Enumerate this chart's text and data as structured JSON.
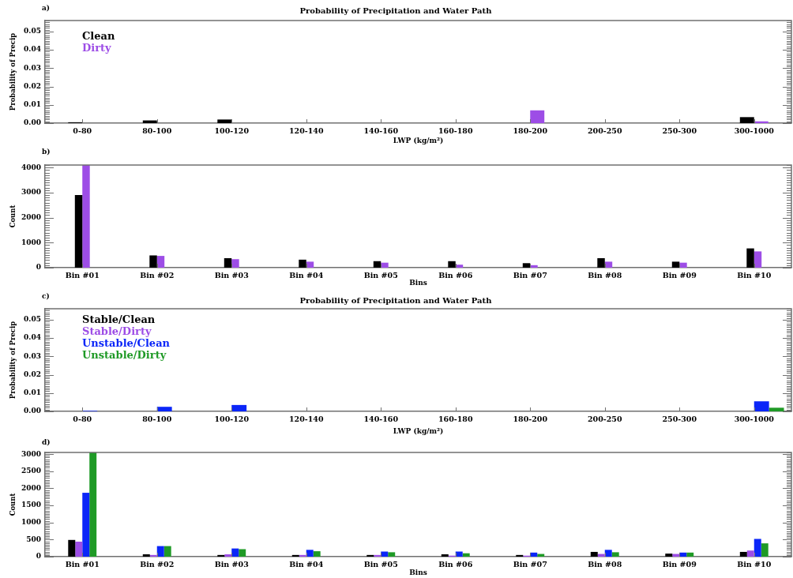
{
  "chart_data": [
    {
      "type": "bar",
      "title": "Probability of Precipitation and Water Path",
      "annotations": [
        "a)"
      ],
      "xlabel": "LWP (kg/m²)",
      "ylabel": "Probability of Precip",
      "categories": [
        "0-80",
        "80-100",
        "100-120",
        "120-140",
        "140-160",
        "160-180",
        "180-200",
        "200-250",
        "250-300",
        "300-1000"
      ],
      "series": [
        {
          "name": "Clean",
          "color": "#000000",
          "values": [
            0.0005,
            0.0015,
            0.002,
            0,
            0,
            0,
            0,
            0,
            0,
            0.0033
          ]
        },
        {
          "name": "Dirty",
          "color": "#9d4de6",
          "values": [
            0,
            0,
            0,
            0,
            0,
            0,
            0.007,
            0,
            0,
            0.001
          ]
        }
      ],
      "ylim": [
        0,
        0.056
      ],
      "yticks": [
        {
          "value": 0,
          "label": "0.00"
        },
        {
          "value": 0.001,
          "label": null
        },
        {
          "value": 0.002,
          "label": null
        },
        {
          "value": 0.003,
          "label": null
        },
        {
          "value": 0.004,
          "label": null
        },
        {
          "value": 0.005,
          "label": null
        },
        {
          "value": 0.006,
          "label": null
        },
        {
          "value": 0.007,
          "label": null
        },
        {
          "value": 0.008,
          "label": null
        },
        {
          "value": 0.009,
          "label": null
        },
        {
          "value": 0.01,
          "label": "0.01"
        },
        {
          "value": 0.011,
          "label": null
        },
        {
          "value": 0.012,
          "label": null
        },
        {
          "value": 0.013,
          "label": null
        },
        {
          "value": 0.014,
          "label": null
        },
        {
          "value": 0.015,
          "label": null
        },
        {
          "value": 0.016,
          "label": null
        },
        {
          "value": 0.017,
          "label": null
        },
        {
          "value": 0.018,
          "label": null
        },
        {
          "value": 0.019,
          "label": null
        },
        {
          "value": 0.02,
          "label": "0.02"
        },
        {
          "value": 0.021,
          "label": null
        },
        {
          "value": 0.022,
          "label": null
        },
        {
          "value": 0.023,
          "label": null
        },
        {
          "value": 0.024,
          "label": null
        },
        {
          "value": 0.025,
          "label": null
        },
        {
          "value": 0.026,
          "label": null
        },
        {
          "value": 0.027,
          "label": null
        },
        {
          "value": 0.028,
          "label": null
        },
        {
          "value": 0.029,
          "label": null
        },
        {
          "value": 0.03,
          "label": "0.03"
        },
        {
          "value": 0.031,
          "label": null
        },
        {
          "value": 0.032,
          "label": null
        },
        {
          "value": 0.033,
          "label": null
        },
        {
          "value": 0.034,
          "label": null
        },
        {
          "value": 0.035,
          "label": null
        },
        {
          "value": 0.036,
          "label": null
        },
        {
          "value": 0.037,
          "label": null
        },
        {
          "value": 0.038,
          "label": null
        },
        {
          "value": 0.039,
          "label": null
        },
        {
          "value": 0.04,
          "label": "0.04"
        },
        {
          "value": 0.041,
          "label": null
        },
        {
          "value": 0.042,
          "label": null
        },
        {
          "value": 0.043,
          "label": null
        },
        {
          "value": 0.044,
          "label": null
        },
        {
          "value": 0.045,
          "label": null
        },
        {
          "value": 0.046,
          "label": null
        },
        {
          "value": 0.047,
          "label": null
        },
        {
          "value": 0.048,
          "label": null
        },
        {
          "value": 0.049,
          "label": null
        },
        {
          "value": 0.05,
          "label": "0.05"
        },
        {
          "value": 0.051,
          "label": null
        },
        {
          "value": 0.052,
          "label": null
        },
        {
          "value": 0.053,
          "label": null
        },
        {
          "value": 0.054,
          "label": null
        },
        {
          "value": 0.055,
          "label": null
        },
        {
          "value": 0.056,
          "label": null
        }
      ],
      "legend": "top left"
    },
    {
      "type": "bar",
      "annotations": [
        "b)"
      ],
      "xlabel": "Bins",
      "ylabel": "Count",
      "categories": [
        "Bin #01",
        "Bin #02",
        "Bin #03",
        "Bin #04",
        "Bin #05",
        "Bin #06",
        "Bin #07",
        "Bin #08",
        "Bin #09",
        "Bin #10"
      ],
      "series": [
        {
          "color": "#000000",
          "values": [
            2900,
            490,
            380,
            320,
            260,
            260,
            180,
            380,
            240,
            770
          ]
        },
        {
          "color": "#9d4de6",
          "values": [
            4100,
            470,
            340,
            240,
            200,
            120,
            100,
            240,
            200,
            650
          ]
        }
      ],
      "ylim": [
        0,
        4100
      ],
      "yticks": [
        0,
        {
          "value": 100,
          "label": null
        },
        {
          "value": 200,
          "label": null
        },
        {
          "value": 300,
          "label": null
        },
        {
          "value": 400,
          "label": null
        },
        {
          "value": 500,
          "label": null
        },
        {
          "value": 600,
          "label": null
        },
        {
          "value": 700,
          "label": null
        },
        {
          "value": 800,
          "label": null
        },
        {
          "value": 900,
          "label": null
        },
        1000,
        {
          "value": 1100,
          "label": null
        },
        {
          "value": 1200,
          "label": null
        },
        {
          "value": 1300,
          "label": null
        },
        {
          "value": 1400,
          "label": null
        },
        {
          "value": 1500,
          "label": null
        },
        {
          "value": 1600,
          "label": null
        },
        {
          "value": 1700,
          "label": null
        },
        {
          "value": 1800,
          "label": null
        },
        {
          "value": 1900,
          "label": null
        },
        2000,
        {
          "value": 2100,
          "label": null
        },
        {
          "value": 2200,
          "label": null
        },
        {
          "value": 2300,
          "label": null
        },
        {
          "value": 2400,
          "label": null
        },
        {
          "value": 2500,
          "label": null
        },
        {
          "value": 2600,
          "label": null
        },
        {
          "value": 2700,
          "label": null
        },
        {
          "value": 2800,
          "label": null
        },
        {
          "value": 2900,
          "label": null
        },
        3000,
        {
          "value": 3100,
          "label": null
        },
        {
          "value": 3200,
          "label": null
        },
        {
          "value": 3300,
          "label": null
        },
        {
          "value": 3400,
          "label": null
        },
        {
          "value": 3500,
          "label": null
        },
        {
          "value": 3600,
          "label": null
        },
        {
          "value": 3700,
          "label": null
        },
        {
          "value": 3800,
          "label": null
        },
        {
          "value": 3900,
          "label": null
        },
        4000,
        {
          "value": 4100,
          "label": null
        }
      ]
    },
    {
      "type": "bar",
      "title": "Probability of Precipitation and Water Path",
      "annotations": [
        "c)"
      ],
      "xlabel": "LWP (kg/m²)",
      "ylabel": "Probability of Precip",
      "categories": [
        "0-80",
        "80-100",
        "100-120",
        "120-140",
        "140-160",
        "160-180",
        "180-200",
        "200-250",
        "250-300",
        "300-1000"
      ],
      "series": [
        {
          "name": "Stable/Clean",
          "color": "#000000",
          "values": [
            0,
            0,
            0,
            0,
            0,
            0,
            0,
            0,
            0,
            0
          ]
        },
        {
          "name": "Stable/Dirty",
          "color": "#9d4de6",
          "values": [
            0,
            0,
            0,
            0,
            0,
            0,
            0,
            0,
            0,
            0
          ]
        },
        {
          "name": "Unstable/Clean",
          "color": "#0b26f8",
          "values": [
            0.0003,
            0.0025,
            0.0035,
            0,
            0,
            0,
            0,
            0,
            0,
            0.0055
          ]
        },
        {
          "name": "Unstable/Dirty",
          "color": "#1f9a26",
          "values": [
            0,
            0,
            0,
            0,
            0,
            0,
            0,
            0,
            0,
            0.002
          ]
        }
      ],
      "ylim": [
        0,
        0.056
      ],
      "yticks": [
        {
          "value": 0,
          "label": "0.00"
        },
        {
          "value": 0.001,
          "label": null
        },
        {
          "value": 0.002,
          "label": null
        },
        {
          "value": 0.003,
          "label": null
        },
        {
          "value": 0.004,
          "label": null
        },
        {
          "value": 0.005,
          "label": null
        },
        {
          "value": 0.006,
          "label": null
        },
        {
          "value": 0.007,
          "label": null
        },
        {
          "value": 0.008,
          "label": null
        },
        {
          "value": 0.009,
          "label": null
        },
        {
          "value": 0.01,
          "label": "0.01"
        },
        {
          "value": 0.011,
          "label": null
        },
        {
          "value": 0.012,
          "label": null
        },
        {
          "value": 0.013,
          "label": null
        },
        {
          "value": 0.014,
          "label": null
        },
        {
          "value": 0.015,
          "label": null
        },
        {
          "value": 0.016,
          "label": null
        },
        {
          "value": 0.017,
          "label": null
        },
        {
          "value": 0.018,
          "label": null
        },
        {
          "value": 0.019,
          "label": null
        },
        {
          "value": 0.02,
          "label": "0.02"
        },
        {
          "value": 0.021,
          "label": null
        },
        {
          "value": 0.022,
          "label": null
        },
        {
          "value": 0.023,
          "label": null
        },
        {
          "value": 0.024,
          "label": null
        },
        {
          "value": 0.025,
          "label": null
        },
        {
          "value": 0.026,
          "label": null
        },
        {
          "value": 0.027,
          "label": null
        },
        {
          "value": 0.028,
          "label": null
        },
        {
          "value": 0.029,
          "label": null
        },
        {
          "value": 0.03,
          "label": "0.03"
        },
        {
          "value": 0.031,
          "label": null
        },
        {
          "value": 0.032,
          "label": null
        },
        {
          "value": 0.033,
          "label": null
        },
        {
          "value": 0.034,
          "label": null
        },
        {
          "value": 0.035,
          "label": null
        },
        {
          "value": 0.036,
          "label": null
        },
        {
          "value": 0.037,
          "label": null
        },
        {
          "value": 0.038,
          "label": null
        },
        {
          "value": 0.039,
          "label": null
        },
        {
          "value": 0.04,
          "label": "0.04"
        },
        {
          "value": 0.041,
          "label": null
        },
        {
          "value": 0.042,
          "label": null
        },
        {
          "value": 0.043,
          "label": null
        },
        {
          "value": 0.044,
          "label": null
        },
        {
          "value": 0.045,
          "label": null
        },
        {
          "value": 0.046,
          "label": null
        },
        {
          "value": 0.047,
          "label": null
        },
        {
          "value": 0.048,
          "label": null
        },
        {
          "value": 0.049,
          "label": null
        },
        {
          "value": 0.05,
          "label": "0.05"
        },
        {
          "value": 0.051,
          "label": null
        },
        {
          "value": 0.052,
          "label": null
        },
        {
          "value": 0.053,
          "label": null
        },
        {
          "value": 0.054,
          "label": null
        },
        {
          "value": 0.055,
          "label": null
        },
        {
          "value": 0.056,
          "label": null
        }
      ],
      "legend": "top left"
    },
    {
      "type": "bar",
      "annotations": [
        "d)"
      ],
      "xlabel": "Bins",
      "ylabel": "Count",
      "categories": [
        "Bin #01",
        "Bin #02",
        "Bin #03",
        "Bin #04",
        "Bin #05",
        "Bin #06",
        "Bin #07",
        "Bin #08",
        "Bin #09",
        "Bin #10"
      ],
      "series": [
        {
          "color": "#000000",
          "values": [
            490,
            70,
            50,
            50,
            50,
            70,
            50,
            140,
            90,
            140
          ]
        },
        {
          "color": "#9d4de6",
          "values": [
            440,
            50,
            70,
            50,
            50,
            30,
            30,
            80,
            80,
            180
          ]
        },
        {
          "color": "#0b26f8",
          "values": [
            1870,
            310,
            240,
            200,
            150,
            150,
            120,
            200,
            120,
            520
          ]
        },
        {
          "color": "#1f9a26",
          "values": [
            3050,
            310,
            220,
            160,
            130,
            100,
            80,
            130,
            120,
            390
          ]
        }
      ],
      "ylim": [
        0,
        3050
      ],
      "yticks": [
        0,
        {
          "value": 50,
          "label": null
        },
        {
          "value": 100,
          "label": null
        },
        {
          "value": 150,
          "label": null
        },
        {
          "value": 200,
          "label": null
        },
        {
          "value": 250,
          "label": null
        },
        {
          "value": 300,
          "label": null
        },
        {
          "value": 350,
          "label": null
        },
        {
          "value": 400,
          "label": null
        },
        {
          "value": 450,
          "label": null
        },
        500,
        {
          "value": 550,
          "label": null
        },
        {
          "value": 600,
          "label": null
        },
        {
          "value": 650,
          "label": null
        },
        {
          "value": 700,
          "label": null
        },
        {
          "value": 750,
          "label": null
        },
        {
          "value": 800,
          "label": null
        },
        {
          "value": 850,
          "label": null
        },
        {
          "value": 900,
          "label": null
        },
        {
          "value": 950,
          "label": null
        },
        1000,
        {
          "value": 1050,
          "label": null
        },
        {
          "value": 1100,
          "label": null
        },
        {
          "value": 1150,
          "label": null
        },
        {
          "value": 1200,
          "label": null
        },
        {
          "value": 1250,
          "label": null
        },
        {
          "value": 1300,
          "label": null
        },
        {
          "value": 1350,
          "label": null
        },
        {
          "value": 1400,
          "label": null
        },
        {
          "value": 1450,
          "label": null
        },
        1500,
        {
          "value": 1550,
          "label": null
        },
        {
          "value": 1600,
          "label": null
        },
        {
          "value": 1650,
          "label": null
        },
        {
          "value": 1700,
          "label": null
        },
        {
          "value": 1750,
          "label": null
        },
        {
          "value": 1800,
          "label": null
        },
        {
          "value": 1850,
          "label": null
        },
        {
          "value": 1900,
          "label": null
        },
        {
          "value": 1950,
          "label": null
        },
        2000,
        {
          "value": 2050,
          "label": null
        },
        {
          "value": 2100,
          "label": null
        },
        {
          "value": 2150,
          "label": null
        },
        {
          "value": 2200,
          "label": null
        },
        {
          "value": 2250,
          "label": null
        },
        {
          "value": 2300,
          "label": null
        },
        {
          "value": 2350,
          "label": null
        },
        {
          "value": 2400,
          "label": null
        },
        {
          "value": 2450,
          "label": null
        },
        2500,
        {
          "value": 2550,
          "label": null
        },
        {
          "value": 2600,
          "label": null
        },
        {
          "value": 2650,
          "label": null
        },
        {
          "value": 2700,
          "label": null
        },
        {
          "value": 2750,
          "label": null
        },
        {
          "value": 2800,
          "label": null
        },
        {
          "value": 2850,
          "label": null
        },
        {
          "value": 2900,
          "label": null
        },
        {
          "value": 2950,
          "label": null
        },
        3000,
        {
          "value": 3050,
          "label": null
        }
      ]
    }
  ]
}
